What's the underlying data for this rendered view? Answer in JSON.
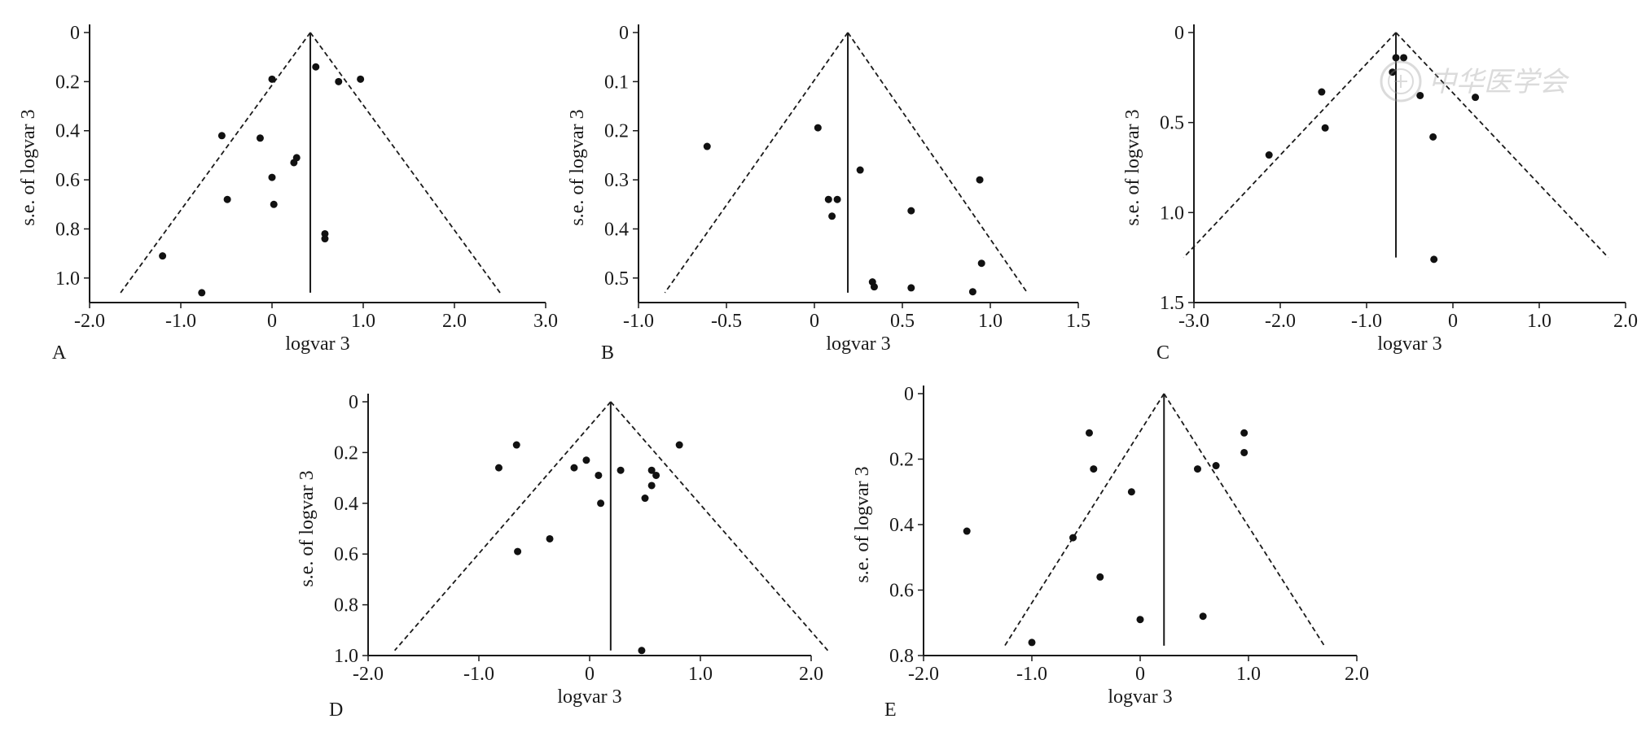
{
  "figure": {
    "watermark": {
      "text": "中华医学会",
      "icon": "seal-logo-icon"
    },
    "colors": {
      "axis": "#1a1a1a",
      "marker": "#111111",
      "line": "#1a1a1a"
    }
  },
  "chart_data": [
    {
      "id": "A",
      "panel_label": "A",
      "type": "scatter",
      "subtype": "funnel-plot",
      "title": "",
      "xlabel": "logvar 3",
      "ylabel": "s.e. of logvar 3",
      "xlim": [
        -2.0,
        3.0
      ],
      "ylim": [
        0,
        1.1
      ],
      "y_inverted": true,
      "xticks": [
        -2.0,
        -1.0,
        0,
        1.0,
        2.0,
        3.0
      ],
      "xtick_labels": [
        "-2.0",
        "-1.0",
        "0",
        "1.0",
        "2.0",
        "3.0"
      ],
      "yticks": [
        0,
        0.2,
        0.4,
        0.6,
        0.8,
        1.0
      ],
      "ytick_labels": [
        "0",
        "0.2",
        "0.4",
        "0.6",
        "0.8",
        "1.0"
      ],
      "pooled_estimate": 0.42,
      "funnel": {
        "apex_se": 0,
        "max_se": 1.06,
        "lower_x": -1.66,
        "upper_x": 2.5
      },
      "points": [
        {
          "x": 0.48,
          "se": 0.14
        },
        {
          "x": 0.0,
          "se": 0.19
        },
        {
          "x": 0.73,
          "se": 0.2
        },
        {
          "x": 0.97,
          "se": 0.19
        },
        {
          "x": -0.55,
          "se": 0.42
        },
        {
          "x": -0.13,
          "se": 0.43
        },
        {
          "x": 0.27,
          "se": 0.51
        },
        {
          "x": 0.24,
          "se": 0.53
        },
        {
          "x": 0.0,
          "se": 0.59
        },
        {
          "x": -0.49,
          "se": 0.68
        },
        {
          "x": 0.02,
          "se": 0.7
        },
        {
          "x": 0.58,
          "se": 0.82
        },
        {
          "x": 0.58,
          "se": 0.84
        },
        {
          "x": -1.2,
          "se": 0.91
        },
        {
          "x": -0.77,
          "se": 1.06
        }
      ]
    },
    {
      "id": "B",
      "panel_label": "B",
      "type": "scatter",
      "subtype": "funnel-plot",
      "title": "",
      "xlabel": "logvar 3",
      "ylabel": "s.e. of logvar 3",
      "xlim": [
        -1.0,
        1.5
      ],
      "ylim": [
        0,
        0.55
      ],
      "y_inverted": true,
      "xticks": [
        -1.0,
        -0.5,
        0,
        0.5,
        1.0,
        1.5
      ],
      "xtick_labels": [
        "-1.0",
        "-0.5",
        "0",
        "0.5",
        "1.0",
        "1.5"
      ],
      "yticks": [
        0,
        0.1,
        0.2,
        0.3,
        0.4,
        0.5
      ],
      "ytick_labels": [
        "0",
        "0.1",
        "0.2",
        "0.3",
        "0.4",
        "0.5"
      ],
      "pooled_estimate": 0.19,
      "funnel": {
        "apex_se": 0,
        "max_se": 0.53,
        "lower_x": -0.85,
        "upper_x": 1.21
      },
      "points": [
        {
          "x": -0.61,
          "se": 0.232
        },
        {
          "x": 0.02,
          "se": 0.194
        },
        {
          "x": 0.26,
          "se": 0.28
        },
        {
          "x": 0.94,
          "se": 0.3
        },
        {
          "x": 0.08,
          "se": 0.34
        },
        {
          "x": 0.13,
          "se": 0.34
        },
        {
          "x": 0.1,
          "se": 0.374
        },
        {
          "x": 0.55,
          "se": 0.363
        },
        {
          "x": 0.95,
          "se": 0.47
        },
        {
          "x": 0.33,
          "se": 0.508
        },
        {
          "x": 0.34,
          "se": 0.518
        },
        {
          "x": 0.55,
          "se": 0.52
        },
        {
          "x": 0.9,
          "se": 0.528
        }
      ]
    },
    {
      "id": "C",
      "panel_label": "C",
      "type": "scatter",
      "subtype": "funnel-plot",
      "title": "",
      "xlabel": "logvar 3",
      "ylabel": "s.e. of logvar 3",
      "xlim": [
        -3.0,
        2.0
      ],
      "ylim": [
        0,
        1.5
      ],
      "y_inverted": true,
      "xticks": [
        -3.0,
        -2.0,
        -1.0,
        0,
        1.0,
        2.0
      ],
      "xtick_labels": [
        "-3.0",
        "-2.0",
        "-1.0",
        "0",
        "1.0",
        "2.0"
      ],
      "yticks": [
        0,
        0.5,
        1.0,
        1.5
      ],
      "ytick_labels": [
        "0",
        "0.5",
        "1.0",
        "1.5"
      ],
      "pooled_estimate": -0.66,
      "funnel": {
        "apex_se": 0,
        "max_se": 1.25,
        "lower_x": -3.12,
        "upper_x": 1.8
      },
      "points": [
        {
          "x": -0.66,
          "se": 0.14
        },
        {
          "x": -0.57,
          "se": 0.14
        },
        {
          "x": -0.7,
          "se": 0.22
        },
        {
          "x": -1.52,
          "se": 0.33
        },
        {
          "x": -0.38,
          "se": 0.35
        },
        {
          "x": 0.26,
          "se": 0.36
        },
        {
          "x": -1.48,
          "se": 0.53
        },
        {
          "x": -0.23,
          "se": 0.58
        },
        {
          "x": -2.13,
          "se": 0.68
        },
        {
          "x": -0.22,
          "se": 1.26
        }
      ]
    },
    {
      "id": "D",
      "panel_label": "D",
      "type": "scatter",
      "subtype": "funnel-plot",
      "title": "",
      "xlabel": "logvar 3",
      "ylabel": "s.e. of logvar 3",
      "xlim": [
        -2.0,
        2.0
      ],
      "ylim": [
        0,
        1.0
      ],
      "y_inverted": true,
      "xticks": [
        -2.0,
        -1.0,
        0,
        1.0,
        2.0
      ],
      "xtick_labels": [
        "-2.0",
        "-1.0",
        "0",
        "1.0",
        "2.0"
      ],
      "yticks": [
        0,
        0.2,
        0.4,
        0.6,
        0.8,
        1.0
      ],
      "ytick_labels": [
        "0",
        "0.2",
        "0.4",
        "0.6",
        "0.8",
        "1.0"
      ],
      "pooled_estimate": 0.19,
      "funnel": {
        "apex_se": 0,
        "max_se": 0.98,
        "lower_x": -1.76,
        "upper_x": 2.15
      },
      "points": [
        {
          "x": -0.66,
          "se": 0.17
        },
        {
          "x": 0.81,
          "se": 0.17
        },
        {
          "x": -0.82,
          "se": 0.26
        },
        {
          "x": -0.14,
          "se": 0.26
        },
        {
          "x": -0.03,
          "se": 0.23
        },
        {
          "x": 0.08,
          "se": 0.29
        },
        {
          "x": 0.28,
          "se": 0.27
        },
        {
          "x": 0.56,
          "se": 0.27
        },
        {
          "x": 0.6,
          "se": 0.29
        },
        {
          "x": 0.56,
          "se": 0.33
        },
        {
          "x": 0.5,
          "se": 0.38
        },
        {
          "x": 0.1,
          "se": 0.4
        },
        {
          "x": -0.36,
          "se": 0.54
        },
        {
          "x": -0.65,
          "se": 0.59
        },
        {
          "x": 0.47,
          "se": 0.98
        }
      ]
    },
    {
      "id": "E",
      "panel_label": "E",
      "type": "scatter",
      "subtype": "funnel-plot",
      "title": "",
      "xlabel": "logvar 3",
      "ylabel": "s.e. of logvar 3",
      "xlim": [
        -2.0,
        2.0
      ],
      "ylim": [
        0,
        0.8
      ],
      "y_inverted": true,
      "xticks": [
        -2.0,
        -1.0,
        0,
        1.0,
        2.0
      ],
      "xtick_labels": [
        "-2.0",
        "-1.0",
        "0",
        "1.0",
        "2.0"
      ],
      "yticks": [
        0,
        0.2,
        0.4,
        0.6,
        0.8
      ],
      "ytick_labels": [
        "0",
        "0.2",
        "0.4",
        "0.6",
        "0.8"
      ],
      "pooled_estimate": 0.22,
      "funnel": {
        "apex_se": 0,
        "max_se": 0.77,
        "lower_x": -1.25,
        "upper_x": 1.7
      },
      "points": [
        {
          "x": -0.47,
          "se": 0.12
        },
        {
          "x": 0.96,
          "se": 0.12
        },
        {
          "x": 0.96,
          "se": 0.18
        },
        {
          "x": -0.43,
          "se": 0.23
        },
        {
          "x": 0.53,
          "se": 0.23
        },
        {
          "x": 0.7,
          "se": 0.22
        },
        {
          "x": -0.08,
          "se": 0.3
        },
        {
          "x": -1.6,
          "se": 0.42
        },
        {
          "x": -0.62,
          "se": 0.44
        },
        {
          "x": -0.37,
          "se": 0.56
        },
        {
          "x": 0.58,
          "se": 0.68
        },
        {
          "x": 0.0,
          "se": 0.69
        },
        {
          "x": -1.0,
          "se": 0.76
        }
      ]
    }
  ]
}
